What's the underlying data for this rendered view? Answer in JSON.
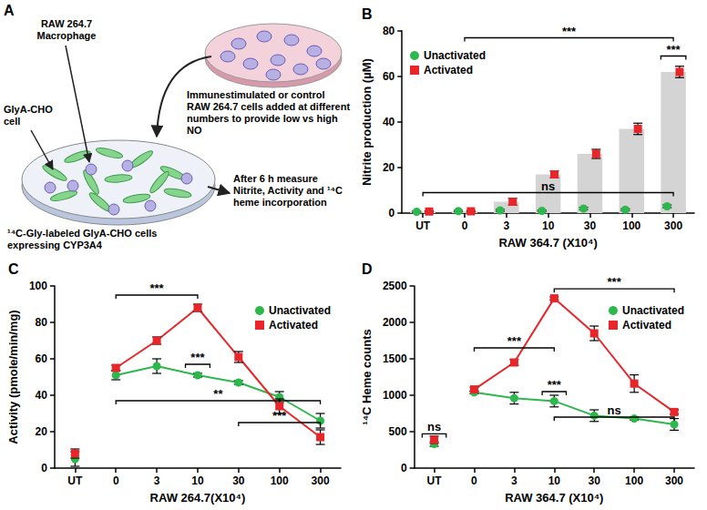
{
  "diagram": {
    "panel": "A",
    "labels": {
      "macrophage": "RAW 264.7 Macrophage",
      "added_cells": "Immunestimulated or control RAW 264.7 cells added at different numbers to provide low vs high NO",
      "cho_cell": "GlyA-CHO cell",
      "labeled_cells": "¹⁴C-Gly-labeled GlyA-CHO cells expressing CYP3A4",
      "measure": "After 6 h measure Nitrite, Activity and ¹⁴C heme incorporation"
    }
  },
  "chart_data": [
    {
      "panel": "B",
      "type": "bar",
      "y_label": "Nitrite production (µM)",
      "x_label": "RAW 364.7 (X10⁴)",
      "categories": [
        "UT",
        "0",
        "3",
        "10",
        "30",
        "100",
        "300"
      ],
      "series": [
        {
          "name": "Unactivated",
          "color": "#2db84d",
          "marker": "circle",
          "values": [
            0.6,
            0.9,
            1.2,
            1.0,
            2.0,
            1.5,
            3.0
          ],
          "errors": [
            0.3,
            0.3,
            0.4,
            0.3,
            0.5,
            0.4,
            0.6
          ]
        },
        {
          "name": "Activated",
          "color": "#e8262a",
          "marker": "square",
          "values": [
            0.7,
            0.8,
            5,
            17,
            26,
            37,
            62
          ],
          "errors": [
            0.3,
            0.3,
            1.5,
            1.5,
            2,
            2.5,
            2.5
          ]
        }
      ],
      "ylim": [
        0,
        80
      ],
      "yticks": [
        0,
        20,
        40,
        60,
        80
      ],
      "grid": false,
      "legend": "top-left",
      "annotations": [
        {
          "text": "ns",
          "from": "UT",
          "to": "300",
          "y": 9
        },
        {
          "text": "***",
          "from": "0",
          "to": "300",
          "y": 77
        },
        {
          "text": "***",
          "from": "300",
          "to": "300",
          "y": 69
        }
      ]
    },
    {
      "panel": "C",
      "type": "line",
      "y_label": "Activity (pmole/min/mg)",
      "x_label": "RAW 264.7(X10⁴)",
      "categories": [
        "UT",
        "0",
        "3",
        "10",
        "30",
        "100",
        "300"
      ],
      "series": [
        {
          "name": "Unactivated",
          "color": "#2db84d",
          "marker": "circle",
          "values": [
            5,
            51,
            56,
            51,
            47,
            39,
            26
          ],
          "errors": [
            4,
            2.5,
            4,
            1,
            1,
            3,
            4
          ]
        },
        {
          "name": "Activated",
          "color": "#e8262a",
          "marker": "square",
          "values": [
            8,
            55,
            70,
            88,
            61,
            34,
            17
          ],
          "errors": [
            2.5,
            1.5,
            2,
            2,
            3,
            4,
            4
          ]
        }
      ],
      "ylim": [
        0,
        100
      ],
      "yticks": [
        0,
        20,
        40,
        60,
        80,
        100
      ],
      "grid": false,
      "legend": "top-right",
      "annotations": [
        {
          "text": "***",
          "from": "0",
          "to": "10",
          "y": 95
        },
        {
          "text": "***",
          "from": "10",
          "to": "10",
          "y": 57
        },
        {
          "text": "**",
          "from": "0",
          "to": "300",
          "y": 37
        },
        {
          "text": "***",
          "from": "30",
          "to": "300",
          "y": 25
        }
      ]
    },
    {
      "panel": "D",
      "type": "line",
      "y_label": "¹⁴C Heme counts",
      "x_label": "RAW 364.7 (X10⁴)",
      "categories": [
        "UT",
        "0",
        "3",
        "10",
        "30",
        "100",
        "300"
      ],
      "series": [
        {
          "name": "Unactivated",
          "color": "#2db84d",
          "marker": "circle",
          "values": [
            330,
            1040,
            960,
            920,
            720,
            680,
            600
          ],
          "errors": [
            30,
            20,
            80,
            80,
            80,
            20,
            80
          ]
        },
        {
          "name": "Activated",
          "color": "#e8262a",
          "marker": "square",
          "values": [
            390,
            1080,
            1450,
            2330,
            1850,
            1160,
            770
          ],
          "errors": [
            50,
            30,
            40,
            20,
            100,
            120,
            30
          ]
        }
      ],
      "ylim": [
        0,
        2500
      ],
      "yticks": [
        0,
        500,
        1000,
        1500,
        2000,
        2500
      ],
      "grid": false,
      "legend": "top-right",
      "annotations": [
        {
          "text": "ns",
          "from": "UT",
          "to": "UT",
          "y": 470
        },
        {
          "text": "***",
          "from": "0",
          "to": "10",
          "y": 1650
        },
        {
          "text": "***",
          "from": "10",
          "to": "10",
          "y": 1050
        },
        {
          "text": "***",
          "from": "10",
          "to": "300",
          "y": 2460
        },
        {
          "text": "ns",
          "from": "10",
          "to": "300",
          "y": 700
        }
      ]
    }
  ]
}
